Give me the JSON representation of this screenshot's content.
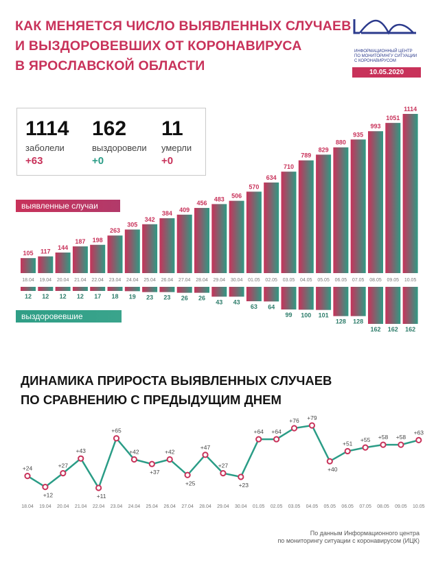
{
  "header": {
    "title_lines": [
      "Как меняется число выявленных случаев",
      "и выздоровевших от коронавируса",
      "в Ярославской области"
    ]
  },
  "logo": {
    "name": "ИЦК",
    "subtitle_lines": [
      "информационный центр",
      "по мониторингу ситуации",
      "с коронавирусом"
    ],
    "date": "10.05.2020",
    "color": "#2b3a8c"
  },
  "stats": {
    "infected": {
      "value": "1114",
      "label": "заболели",
      "delta": "+63"
    },
    "recovered": {
      "value": "162",
      "label": "выздоровели",
      "delta": "+0"
    },
    "died": {
      "value": "11",
      "label": "умерли",
      "delta": "+0"
    }
  },
  "legend": {
    "cases_label": "выявленные случаи",
    "recovered_label": "выздоровевшие"
  },
  "section2": {
    "title_lines": [
      "Динамика прироста выявленных случаев",
      "по сравнению с предыдущим днем"
    ]
  },
  "footnote": {
    "lines": [
      "По данным Информационного центра",
      "по мониторингу ситуации с коронавирусом (ИЦК)"
    ]
  },
  "colors": {
    "accent": "#c8325a",
    "green": "#2a9c86",
    "dark_green": "#2e7d6b"
  },
  "chart_data": [
    {
      "type": "bar",
      "categories": [
        "18.04",
        "19.04",
        "20.04",
        "21.04",
        "22.04",
        "23.04",
        "24.04",
        "25.04",
        "26.04",
        "27.04",
        "28.04",
        "29.04",
        "30.04",
        "01.05",
        "02.05",
        "03.05",
        "04.05",
        "05.05",
        "06.05",
        "07.05",
        "08.05",
        "09.05",
        "10.05"
      ],
      "series": [
        {
          "name": "выявленные случаи",
          "values": [
            105,
            117,
            144,
            187,
            198,
            263,
            305,
            342,
            384,
            409,
            456,
            483,
            506,
            570,
            634,
            710,
            789,
            829,
            880,
            935,
            993,
            1051,
            1114
          ]
        },
        {
          "name": "выздоровевшие",
          "values": [
            12,
            12,
            12,
            12,
            17,
            18,
            19,
            23,
            23,
            26,
            26,
            43,
            43,
            63,
            64,
            99,
            100,
            101,
            128,
            128,
            162,
            162,
            162
          ]
        }
      ]
    },
    {
      "type": "line",
      "categories": [
        "18.04",
        "19.04",
        "20.04",
        "21.04",
        "22.04",
        "23.04",
        "24.04",
        "25.04",
        "26.04",
        "27.04",
        "28.04",
        "29.04",
        "30.04",
        "01.05",
        "02.05",
        "03.05",
        "04.05",
        "05.05",
        "06.05",
        "07.05",
        "08.05",
        "09.05",
        "10.05"
      ],
      "values": [
        24,
        12,
        27,
        43,
        11,
        65,
        42,
        37,
        42,
        25,
        47,
        27,
        23,
        64,
        64,
        76,
        79,
        40,
        51,
        55,
        58,
        58,
        63
      ],
      "labels": [
        "+24",
        "+12",
        "+27",
        "+43",
        "+11",
        "+65",
        "+42",
        "+37",
        "+42",
        "+25",
        "+47",
        "+27",
        "+23",
        "+64",
        "+64",
        "+76",
        "+79",
        "+40",
        "+51",
        "+55",
        "+58",
        "+58",
        "+63"
      ]
    }
  ]
}
